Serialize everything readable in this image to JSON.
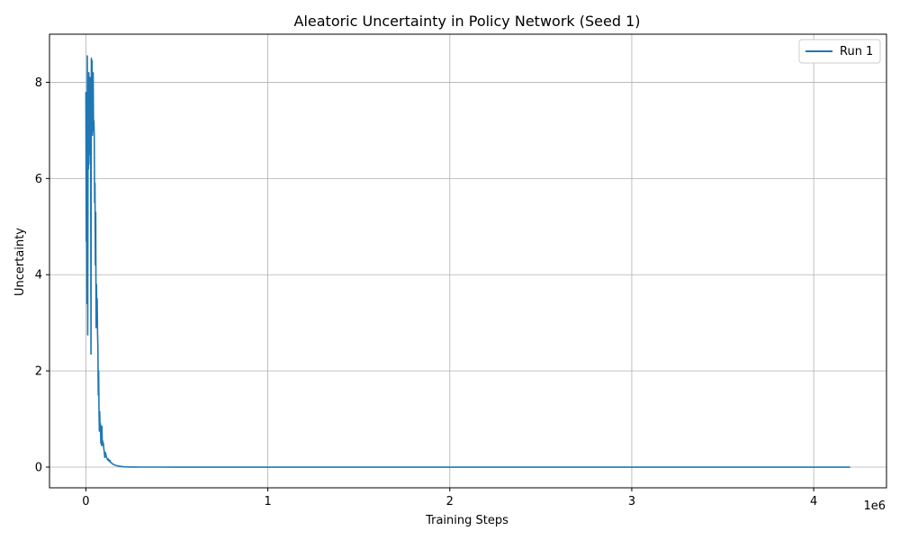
{
  "chart_data": {
    "type": "line",
    "title": "Aleatoric Uncertainty in Policy Network (Seed 1)",
    "xlabel": "Training Steps",
    "ylabel": "Uncertainty",
    "x_offset_label": "1e6",
    "xlim": [
      -200000,
      4400000
    ],
    "ylim": [
      -0.43,
      9.0
    ],
    "x_ticks": [
      0,
      1000000,
      2000000,
      3000000,
      4000000
    ],
    "x_tick_labels": [
      "0",
      "1",
      "2",
      "3",
      "4"
    ],
    "y_ticks": [
      0,
      2,
      4,
      6,
      8
    ],
    "y_tick_labels": [
      "0",
      "2",
      "4",
      "6",
      "8"
    ],
    "grid": true,
    "legend_position": "top-right",
    "series": [
      {
        "name": "Run 1",
        "color": "#1f77b4",
        "x": [
          0,
          2000,
          4000,
          6000,
          8000,
          10000,
          12000,
          14000,
          16000,
          18000,
          20000,
          22000,
          24000,
          26000,
          28000,
          30000,
          32000,
          34000,
          36000,
          38000,
          40000,
          42000,
          44000,
          46000,
          48000,
          50000,
          52000,
          54000,
          56000,
          58000,
          60000,
          62000,
          64000,
          66000,
          68000,
          70000,
          72000,
          74000,
          76000,
          78000,
          80000,
          82000,
          84000,
          86000,
          88000,
          90000,
          92000,
          94000,
          96000,
          98000,
          100000,
          104000,
          108000,
          112000,
          116000,
          120000,
          124000,
          128000,
          132000,
          136000,
          140000,
          145000,
          150000,
          155000,
          160000,
          170000,
          180000,
          190000,
          200000,
          215000,
          230000,
          250000,
          275000,
          300000,
          350000,
          400000,
          500000,
          700000,
          1000000,
          1500000,
          2000000,
          2500000,
          3000000,
          3500000,
          4000000,
          4200000
        ],
        "y": [
          7.8,
          4.7,
          7.5,
          3.4,
          8.55,
          2.75,
          7.2,
          6.2,
          8.2,
          6.5,
          7.5,
          8.1,
          6.3,
          7.8,
          2.35,
          8.5,
          7.0,
          8.45,
          6.9,
          7.3,
          8.2,
          7.0,
          7.2,
          6.9,
          5.5,
          5.9,
          4.2,
          5.3,
          2.9,
          3.8,
          3.2,
          3.5,
          2.8,
          2.5,
          1.5,
          2.0,
          1.2,
          0.75,
          1.15,
          0.8,
          0.9,
          0.5,
          0.6,
          0.45,
          0.85,
          0.5,
          0.55,
          0.45,
          0.5,
          0.4,
          0.35,
          0.2,
          0.3,
          0.22,
          0.18,
          0.15,
          0.17,
          0.12,
          0.14,
          0.1,
          0.09,
          0.07,
          0.06,
          0.05,
          0.04,
          0.03,
          0.02,
          0.015,
          0.01,
          0.006,
          0.004,
          0.002,
          0.001,
          0.0005,
          0.0002,
          0.0001,
          0,
          0,
          0,
          0,
          0,
          0,
          0,
          0,
          0,
          0
        ]
      }
    ]
  }
}
